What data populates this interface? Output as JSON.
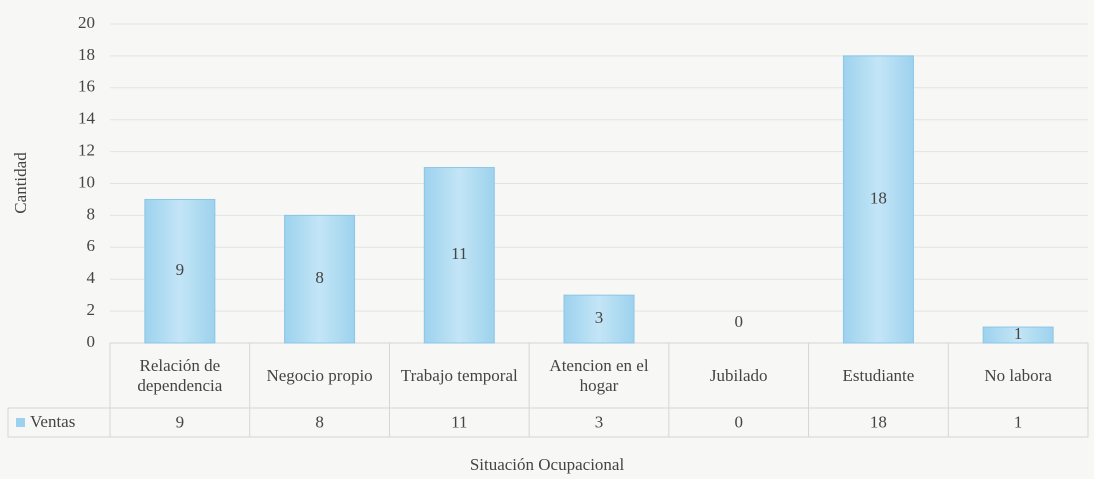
{
  "chart_data": {
    "type": "bar",
    "categories": [
      "Relación de dependencia",
      "Negocio propio",
      "Trabajo temporal",
      "Atencion en el hogar",
      "Jubilado",
      "Estudiante",
      "No labora"
    ],
    "series": [
      {
        "name": "Ventas",
        "color": "#9dd2ee",
        "values": [
          9,
          8,
          11,
          3,
          0,
          18,
          1
        ]
      }
    ],
    "x_label": "Situación Ocupacional",
    "y_label": "Cantidad",
    "ylim": [
      0,
      20
    ],
    "yticks": [
      0,
      2,
      4,
      6,
      8,
      10,
      12,
      14,
      16,
      18,
      20
    ],
    "grid": true,
    "data_table": true
  }
}
